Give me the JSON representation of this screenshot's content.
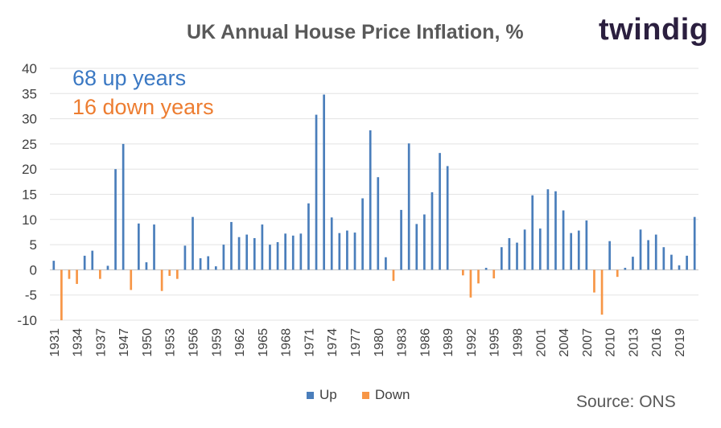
{
  "chart_data": {
    "type": "bar",
    "title": "UK Annual House Price Inflation, %",
    "xlabel": "",
    "ylabel": "",
    "ylim": [
      -10,
      40
    ],
    "yticks": [
      -10,
      -5,
      0,
      5,
      10,
      15,
      20,
      25,
      30,
      35,
      40
    ],
    "grid": true,
    "legend_position": "bottom",
    "annotations": {
      "up_years": "68 up years",
      "down_years": "16 down years"
    },
    "categories": [
      "1931",
      "1932",
      "1933",
      "1934",
      "1935",
      "1936",
      "1937",
      "1938",
      "1939",
      "1947",
      "1948",
      "1949",
      "1950",
      "1951",
      "1952",
      "1953",
      "1954",
      "1955",
      "1956",
      "1957",
      "1958",
      "1959",
      "1960",
      "1961",
      "1962",
      "1963",
      "1964",
      "1965",
      "1966",
      "1967",
      "1968",
      "1969",
      "1970",
      "1971",
      "1972",
      "1973",
      "1974",
      "1975",
      "1976",
      "1977",
      "1978",
      "1979",
      "1980",
      "1981",
      "1982",
      "1983",
      "1984",
      "1985",
      "1986",
      "1987",
      "1988",
      "1989",
      "1990",
      "1991",
      "1992",
      "1993",
      "1994",
      "1995",
      "1996",
      "1997",
      "1998",
      "1999",
      "2000",
      "2001",
      "2002",
      "2003",
      "2004",
      "2005",
      "2006",
      "2007",
      "2008",
      "2009",
      "2010",
      "2011",
      "2012",
      "2013",
      "2014",
      "2015",
      "2016",
      "2017",
      "2018",
      "2019",
      "2020",
      "2021"
    ],
    "xtick_labels": [
      "1931",
      "1934",
      "1937",
      "1947",
      "1950",
      "1953",
      "1956",
      "1959",
      "1962",
      "1965",
      "1968",
      "1971",
      "1974",
      "1977",
      "1980",
      "1983",
      "1986",
      "1989",
      "1992",
      "1995",
      "1998",
      "2001",
      "2004",
      "2007",
      "2010",
      "2013",
      "2016",
      "2019"
    ],
    "values": [
      1.8,
      -10.0,
      -1.8,
      -2.8,
      2.8,
      3.8,
      -1.8,
      0.8,
      20.0,
      25.0,
      -4.0,
      9.2,
      1.5,
      9.0,
      -4.2,
      -1.2,
      -1.8,
      4.8,
      10.5,
      2.3,
      2.7,
      0.7,
      5.0,
      9.5,
      6.5,
      7.0,
      6.3,
      9.0,
      5.0,
      5.5,
      7.2,
      6.8,
      7.2,
      13.2,
      30.8,
      34.8,
      10.4,
      7.3,
      7.8,
      7.4,
      14.2,
      27.7,
      18.4,
      2.5,
      -2.2,
      11.9,
      25.1,
      9.1,
      11.0,
      15.4,
      23.2,
      20.6,
      0.0,
      -1.1,
      -5.5,
      -2.7,
      0.4,
      -1.7,
      4.5,
      6.3,
      5.4,
      8.0,
      14.8,
      8.2,
      16.0,
      15.6,
      11.8,
      7.3,
      7.8,
      9.8,
      -4.5,
      -8.9,
      5.7,
      -1.4,
      0.4,
      2.6,
      8.0,
      5.9,
      7.0,
      4.5,
      3.0,
      0.9,
      2.8,
      10.5
    ],
    "series": [
      {
        "name": "Up",
        "color": "#4a7ebb"
      },
      {
        "name": "Down",
        "color": "#f79646"
      }
    ],
    "source": "Source: ONS"
  },
  "brand": {
    "logo_text": "twindig"
  }
}
